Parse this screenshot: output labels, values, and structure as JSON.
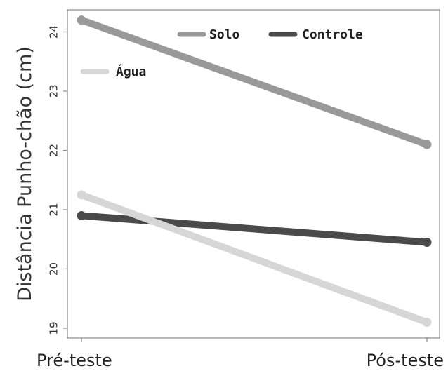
{
  "chart_data": {
    "type": "line",
    "title": "",
    "xlabel": "",
    "ylabel": "Distância Punho-chão (cm)",
    "categories": [
      "Pré-teste",
      "Pós-teste"
    ],
    "ylim": [
      18.95,
      24.4
    ],
    "yticks": [
      19,
      20,
      21,
      22,
      23,
      24
    ],
    "grid": false,
    "legend_position": "top-left",
    "series": [
      {
        "name": "Solo",
        "values": [
          24.2,
          22.1
        ],
        "color": "#999999"
      },
      {
        "name": "Controle",
        "values": [
          20.9,
          20.45
        ],
        "color": "#4a4a4a"
      },
      {
        "name": "Água",
        "values": [
          21.25,
          19.1
        ],
        "color": "#d6d6d6"
      }
    ]
  }
}
